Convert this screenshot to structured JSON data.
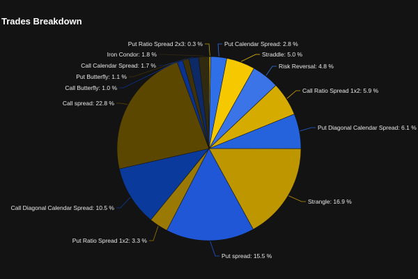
{
  "chart_data": {
    "type": "pie",
    "title": "Trades Breakdown",
    "slices": [
      {
        "name": "Put Ratio Spread 2x3",
        "value": 0.3,
        "label": "Put Ratio Spread 2x3: 0.3 %",
        "color": "#c9a100"
      },
      {
        "name": "Put Calendar Spread",
        "value": 2.8,
        "label": "Put Calendar Spread: 2.8 %",
        "color": "#2f6fe8"
      },
      {
        "name": "Straddle",
        "value": 5.0,
        "label": "Straddle: 5.0 %",
        "color": "#f5c800"
      },
      {
        "name": "Risk Reversal",
        "value": 4.8,
        "label": "Risk Reversal: 4.8 %",
        "color": "#3b74e6"
      },
      {
        "name": "Call Ratio Spread 1x2",
        "value": 5.9,
        "label": "Call Ratio Spread 1x2: 5.9 %",
        "color": "#d6ab00"
      },
      {
        "name": "Put Diagonal Calendar Spread",
        "value": 6.1,
        "label": "Put Diagonal Calendar Spread: 6.1 %",
        "color": "#2563dc"
      },
      {
        "name": "Strangle",
        "value": 16.9,
        "label": "Strangle: 16.9 %",
        "color": "#bd9600"
      },
      {
        "name": "Put spread",
        "value": 15.5,
        "label": "Put spread: 15.5 %",
        "color": "#1f57d6"
      },
      {
        "name": "Put Ratio Spread 1x2",
        "value": 3.3,
        "label": "Put Ratio Spread 1x2: 3.3 %",
        "color": "#9a7a05"
      },
      {
        "name": "Call Diagonal Calendar Spread",
        "value": 10.5,
        "label": "Call Diagonal Calendar Spread: 10.5 %",
        "color": "#0a3a9c"
      },
      {
        "name": "Call spread",
        "value": 22.8,
        "label": "Call spread: 22.8 %",
        "color": "#5c4700"
      },
      {
        "name": "Call Butterfly",
        "value": 1.0,
        "label": "Call Butterfly: 1.0 %",
        "color": "#0a3290"
      },
      {
        "name": "Put Butterfly",
        "value": 1.1,
        "label": "Put Butterfly: 1.1 %",
        "color": "#3f3208"
      },
      {
        "name": "Call Calendar Spread",
        "value": 1.7,
        "label": "Call Calendar Spread: 1.7 %",
        "color": "#0d2a66"
      },
      {
        "name": "Iron Condor",
        "value": 1.8,
        "label": "Iron Condor: 1.8 %",
        "color": "#2f2a10"
      }
    ]
  }
}
